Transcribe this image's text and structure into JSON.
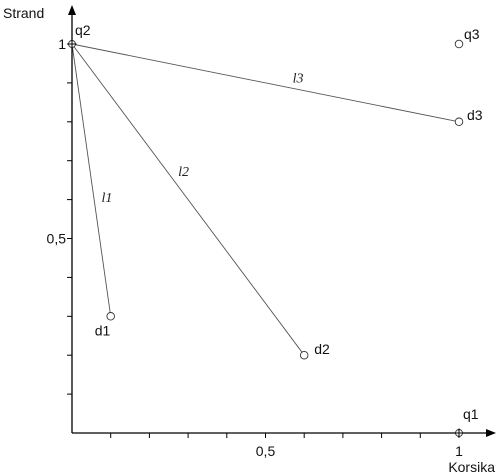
{
  "chart_data": {
    "type": "scatter",
    "xlabel": "Korsika",
    "ylabel": "Strand",
    "xlim": [
      0,
      1.05
    ],
    "ylim": [
      0,
      1.07
    ],
    "x_tick_labels": [
      {
        "value": 0.5,
        "label": "0,5"
      },
      {
        "value": 1,
        "label": "1"
      }
    ],
    "y_tick_labels": [
      {
        "value": 0.5,
        "label": "0,5"
      },
      {
        "value": 1,
        "label": "1"
      }
    ],
    "x_minor_ticks": [
      0.1,
      0.2,
      0.3,
      0.4,
      0.5,
      0.6,
      0.7,
      0.8,
      0.9,
      1.0
    ],
    "y_minor_ticks": [
      0.1,
      0.2,
      0.3,
      0.4,
      0.5,
      0.6,
      0.7,
      0.8,
      0.9,
      1.0
    ],
    "points": [
      {
        "id": "q1",
        "label": "q1",
        "x": 1.0,
        "y": 0.0,
        "marker": "crosshair"
      },
      {
        "id": "q2",
        "label": "q2",
        "x": 0.0,
        "y": 1.0,
        "marker": "crosshair"
      },
      {
        "id": "q3",
        "label": "q3",
        "x": 1.0,
        "y": 1.0,
        "marker": "circle"
      },
      {
        "id": "d1",
        "label": "d1",
        "x": 0.1,
        "y": 0.3,
        "marker": "circle"
      },
      {
        "id": "d2",
        "label": "d2",
        "x": 0.6,
        "y": 0.2,
        "marker": "circle"
      },
      {
        "id": "d3",
        "label": "d3",
        "x": 1.0,
        "y": 0.8,
        "marker": "circle"
      }
    ],
    "segments": [
      {
        "id": "l1",
        "label": "l1",
        "from": "q2",
        "to": "d1"
      },
      {
        "id": "l2",
        "label": "l2",
        "from": "q2",
        "to": "d2"
      },
      {
        "id": "l3",
        "label": "l3",
        "from": "q2",
        "to": "d3"
      }
    ]
  }
}
